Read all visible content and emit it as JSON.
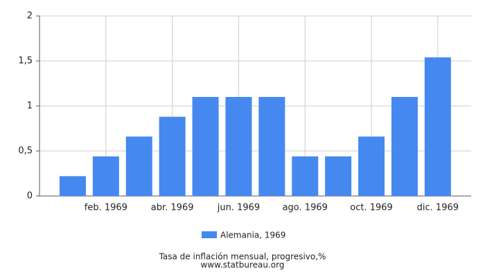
{
  "chart_data": {
    "type": "bar",
    "title": "Tasa de inflación mensual, progresivo,%",
    "subtitle": "www.statbureau.org",
    "categories": [
      null,
      "feb. 1969",
      null,
      "abr. 1969",
      null,
      "jun. 1969",
      null,
      "ago. 1969",
      null,
      "oct. 1969",
      null,
      "dic. 1969"
    ],
    "series": [
      {
        "name": "Alemania, 1969",
        "color": "#4589f0",
        "values": [
          0.22,
          0.44,
          0.66,
          0.88,
          1.1,
          1.1,
          1.1,
          0.44,
          0.44,
          0.66,
          1.1,
          1.54
        ]
      }
    ],
    "ylim": [
      0,
      2
    ],
    "yticks": [
      0,
      {
        "value": 0.5,
        "label": "0,5"
      },
      1,
      {
        "value": 1.5,
        "label": "1,5"
      },
      2
    ],
    "grid": true
  }
}
